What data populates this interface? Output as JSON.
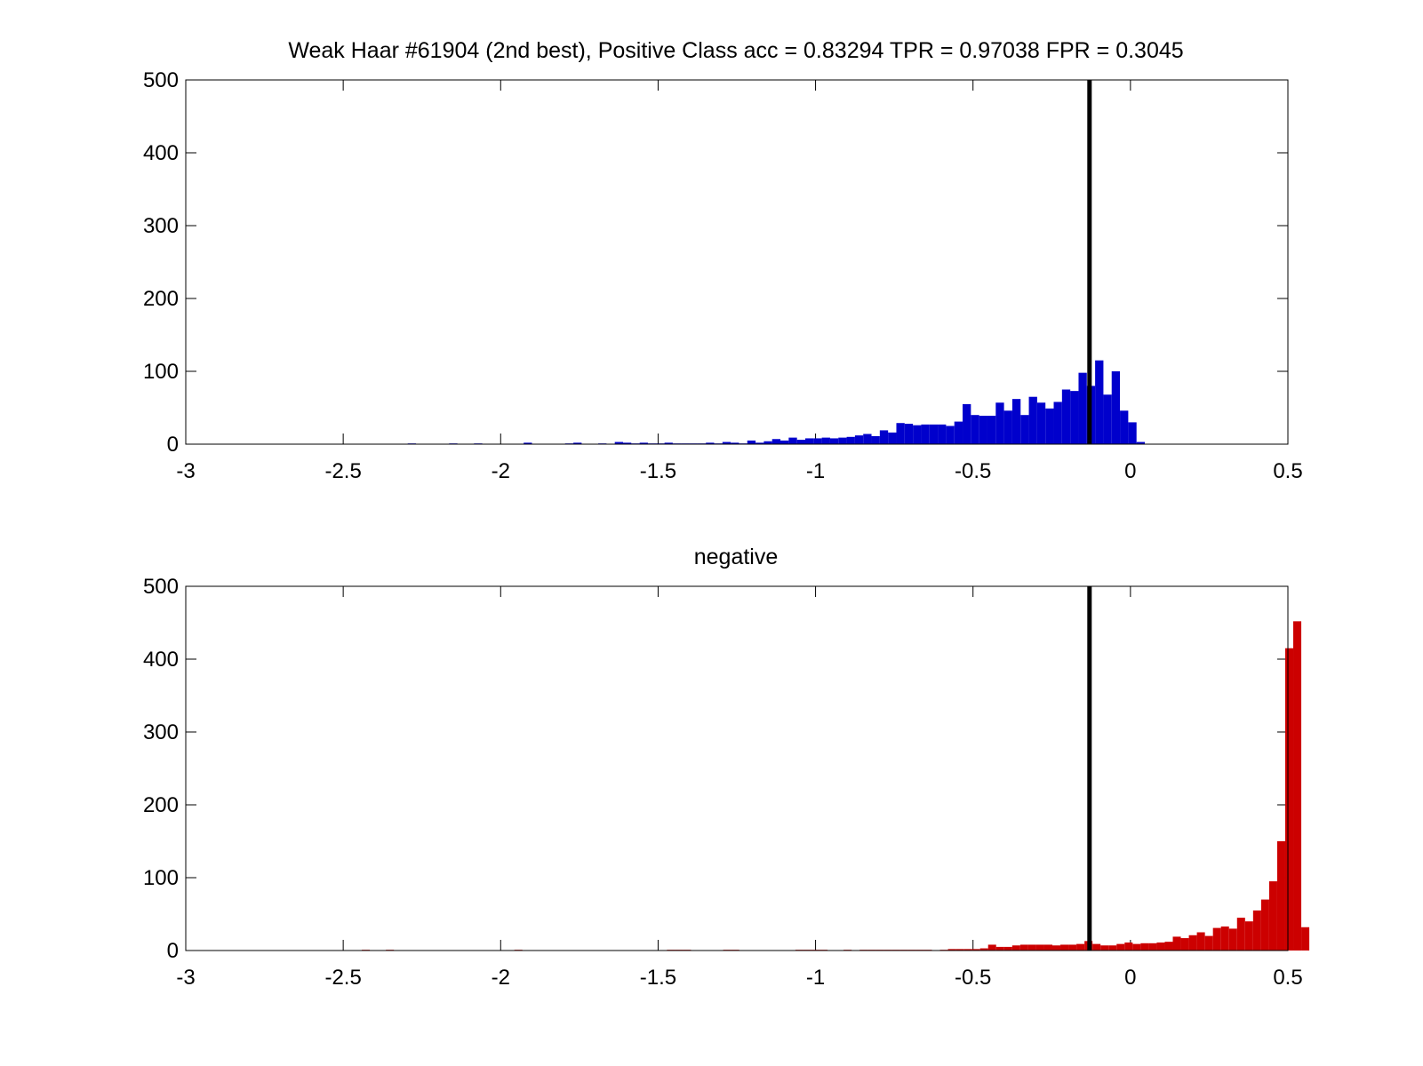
{
  "chart_data": [
    {
      "type": "bar",
      "title": "Weak Haar #61904 (2nd best), Positive Class  acc = 0.83294 TPR = 0.97038 FPR = 0.3045",
      "xlabel": "",
      "ylabel": "",
      "xlim": [
        -3,
        0.5
      ],
      "ylim": [
        0,
        500
      ],
      "xticks": [
        "-3",
        "-2.5",
        "-2",
        "-1.5",
        "-1",
        "-0.5",
        "0",
        "0.5"
      ],
      "yticks": [
        "0",
        "100",
        "200",
        "300",
        "400",
        "500"
      ],
      "grid": false,
      "bar_color": "#0000cc",
      "threshold": -0.13,
      "threshold_color": "#000000",
      "bin_start": -2.9,
      "bin_width": 0.0263,
      "values": [
        0,
        0,
        0,
        0,
        0,
        0,
        0,
        0,
        0,
        0,
        0,
        0,
        0,
        0,
        0,
        0,
        0,
        0,
        0,
        0,
        0,
        0,
        0,
        1,
        0,
        0,
        0,
        0,
        1,
        0,
        0,
        1,
        0,
        0,
        0,
        0,
        0,
        2,
        0,
        0,
        0,
        0,
        1,
        2,
        0,
        0,
        1,
        0,
        3,
        2,
        1,
        2,
        1,
        1,
        2,
        1,
        1,
        1,
        1,
        2,
        1,
        3,
        2,
        1,
        5,
        2,
        4,
        7,
        5,
        9,
        6,
        8,
        8,
        9,
        8,
        9,
        10,
        12,
        14,
        11,
        19,
        16,
        29,
        28,
        26,
        27,
        27,
        27,
        25,
        31,
        55,
        40,
        39,
        39,
        57,
        46,
        62,
        40,
        65,
        57,
        49,
        58,
        75,
        73,
        98,
        80,
        115,
        68,
        100,
        46,
        30,
        3
      ]
    },
    {
      "type": "bar",
      "title": "negative",
      "xlabel": "",
      "ylabel": "",
      "xlim": [
        -3,
        0.5
      ],
      "ylim": [
        0,
        500
      ],
      "xticks": [
        "-3",
        "-2.5",
        "-2",
        "-1.5",
        "-1",
        "-0.5",
        "0",
        "0.5"
      ],
      "yticks": [
        "0",
        "100",
        "200",
        "300",
        "400",
        "500"
      ],
      "grid": false,
      "bar_color": "#cc0000",
      "threshold": -0.13,
      "threshold_color": "#000000",
      "bin_start": -2.9,
      "bin_width": 0.0255,
      "values": [
        0,
        0,
        0,
        0,
        0,
        0,
        0,
        0,
        0,
        0,
        0,
        0,
        0,
        0,
        0,
        0,
        0,
        0,
        1,
        0,
        0,
        1,
        0,
        0,
        0,
        0,
        0,
        0,
        0,
        0,
        0,
        0,
        0,
        0,
        0,
        0,
        0,
        1,
        0,
        0,
        0,
        0,
        0,
        0,
        0,
        0,
        0,
        0,
        0,
        0,
        0,
        0,
        0,
        0,
        0,
        0,
        1,
        1,
        1,
        0,
        0,
        0,
        0,
        1,
        1,
        0,
        0,
        0,
        0,
        0,
        0,
        0,
        1,
        1,
        1,
        1,
        0,
        0,
        1,
        0,
        1,
        1,
        1,
        1,
        1,
        1,
        1,
        1,
        1,
        0,
        1,
        2,
        2,
        2,
        2,
        3,
        8,
        5,
        5,
        7,
        8,
        8,
        8,
        8,
        7,
        8,
        8,
        9,
        13,
        9,
        7,
        7,
        9,
        11,
        9,
        10,
        10,
        11,
        12,
        19,
        17,
        21,
        25,
        20,
        31,
        33,
        30,
        45,
        40,
        55,
        70,
        95,
        150,
        415,
        452,
        32
      ]
    }
  ]
}
